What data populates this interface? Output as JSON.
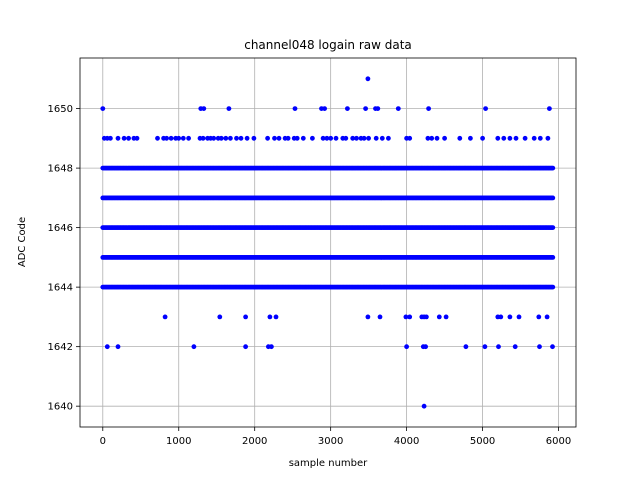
{
  "chart_data": {
    "type": "scatter",
    "title": "channel048 logain raw data",
    "xlabel": "sample number",
    "ylabel": "ADC Code",
    "xlim": [
      -300,
      6230
    ],
    "ylim": [
      1639.3,
      1651.7
    ],
    "xticks": [
      0,
      1000,
      2000,
      3000,
      4000,
      5000,
      6000
    ],
    "yticks": [
      1640,
      1642,
      1644,
      1646,
      1648,
      1650
    ],
    "grid": true,
    "marker_color": "#0000ff",
    "x_range": [
      0,
      5930
    ],
    "dense_levels": [
      1644,
      1645,
      1646,
      1647,
      1648
    ],
    "points": {
      "1651": [
        3490
      ],
      "1650": [
        0,
        1290,
        1330,
        1660,
        2530,
        2880,
        2920,
        3220,
        3460,
        3590,
        3620,
        3890,
        4290,
        5040,
        5880
      ],
      "1649": [
        20,
        60,
        100,
        200,
        280,
        340,
        410,
        450,
        720,
        800,
        840,
        900,
        960,
        1000,
        1060,
        1130,
        1280,
        1320,
        1380,
        1420,
        1460,
        1520,
        1560,
        1620,
        1680,
        1760,
        1820,
        1900,
        1990,
        2170,
        2260,
        2320,
        2400,
        2440,
        2520,
        2560,
        2640,
        2760,
        2900,
        2950,
        3000,
        3070,
        3160,
        3200,
        3290,
        3340,
        3400,
        3440,
        3500,
        3600,
        3680,
        3760,
        4000,
        4040,
        4280,
        4330,
        4400,
        4500,
        4700,
        4840,
        5000,
        5200,
        5280,
        5360,
        5440,
        5560,
        5680,
        5760,
        5860
      ],
      "1643": [
        820,
        1540,
        1880,
        2200,
        2280,
        3490,
        3650,
        3990,
        4040,
        4200,
        4230,
        4260,
        4430,
        4520,
        5200,
        5240,
        5360,
        5480,
        5740,
        5850
      ],
      "1642": [
        60,
        200,
        1200,
        1880,
        2180,
        2220,
        4000,
        4220,
        4250,
        4780,
        5030,
        5210,
        5430,
        5750,
        5920
      ],
      "1640": [
        4230
      ]
    }
  }
}
